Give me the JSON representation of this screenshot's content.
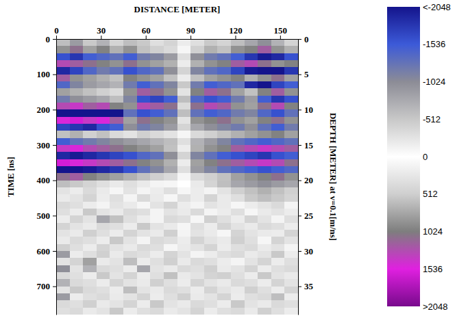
{
  "chart_data": {
    "type": "heatmap",
    "x_label": "DISTANCE [METER]",
    "y_label": "TIME [ns]",
    "y2_label": "DEPTH [METER] at v=0.1[m/ns]",
    "xlim": [
      0,
      162
    ],
    "xticks": [
      0,
      30,
      60,
      90,
      120,
      150
    ],
    "ylim": [
      0,
      780
    ],
    "yticks": [
      0,
      100,
      200,
      300,
      400,
      500,
      600,
      700
    ],
    "y2lim": [
      0,
      39
    ],
    "y2ticks": [
      0,
      5,
      10,
      15,
      20,
      25,
      30,
      35
    ],
    "x_bins": [
      0,
      9,
      18,
      27,
      36,
      45,
      54,
      63,
      72,
      81,
      90,
      99,
      108,
      117,
      126,
      135,
      144,
      153,
      162
    ],
    "y_bins": [
      0,
      20,
      40,
      60,
      80,
      100,
      120,
      140,
      160,
      180,
      200,
      220,
      240,
      260,
      280,
      300,
      320,
      340,
      360,
      380,
      400,
      420,
      440,
      460,
      480,
      500,
      520,
      540,
      560,
      580,
      600,
      620,
      640,
      660,
      680,
      700,
      720,
      740,
      760,
      780
    ],
    "values": [
      [
        -600,
        -900,
        -500,
        -700,
        -400,
        -600,
        -500,
        -300,
        -400,
        200,
        -300,
        -500,
        -400,
        -600,
        -800,
        -1000,
        -700,
        -400
      ],
      [
        900,
        1100,
        800,
        1000,
        700,
        900,
        600,
        500,
        400,
        100,
        500,
        700,
        600,
        900,
        1000,
        1200,
        900,
        700
      ],
      [
        -1600,
        -1800,
        -1500,
        -1400,
        -1300,
        -1500,
        -1200,
        -1100,
        -900,
        -300,
        -1000,
        -1200,
        -1300,
        -1500,
        -1800,
        -2000,
        -1900,
        -1600
      ],
      [
        1300,
        1200,
        1100,
        1000,
        900,
        1100,
        900,
        800,
        700,
        200,
        700,
        900,
        1000,
        1200,
        1300,
        1100,
        900,
        1000
      ],
      [
        -1900,
        -1700,
        -1400,
        -1200,
        -1300,
        -1600,
        -1400,
        -1300,
        -1000,
        -400,
        -1100,
        -1300,
        -1400,
        -1700,
        -2000,
        -2048,
        -2048,
        -1800
      ],
      [
        1200,
        900,
        800,
        700,
        600,
        1000,
        900,
        800,
        600,
        200,
        600,
        800,
        900,
        1000,
        700,
        900,
        1100,
        800
      ],
      [
        -1400,
        -1100,
        -900,
        -800,
        -700,
        -1200,
        -1500,
        -1300,
        -1100,
        -500,
        -1200,
        -1500,
        -1400,
        -1300,
        -1900,
        -2048,
        -1700,
        -1500
      ],
      [
        800,
        700,
        600,
        500,
        400,
        900,
        1200,
        1100,
        900,
        300,
        1000,
        1200,
        1100,
        800,
        600,
        1000,
        1200,
        900
      ],
      [
        -1200,
        -1000,
        -900,
        -800,
        -600,
        -1100,
        -1600,
        -1700,
        -1500,
        -600,
        -1400,
        -1600,
        -1500,
        -1200,
        -900,
        -1500,
        -1800,
        -1600
      ],
      [
        1300,
        1400,
        1200,
        1300,
        1000,
        900,
        1300,
        1200,
        1100,
        400,
        1100,
        1300,
        1200,
        900,
        800,
        1100,
        1300,
        1000
      ],
      [
        -2048,
        -2048,
        -2048,
        -2048,
        -2048,
        -1300,
        -1600,
        -1500,
        -1300,
        -600,
        -1300,
        -1500,
        -1400,
        -1200,
        -1100,
        -1400,
        -1600,
        -1300
      ],
      [
        1500,
        1600,
        1400,
        1500,
        1200,
        800,
        1100,
        1000,
        900,
        300,
        900,
        1000,
        1100,
        900,
        800,
        1000,
        1100,
        900
      ],
      [
        -1700,
        -1800,
        -1900,
        -1600,
        -1500,
        -1000,
        -1200,
        -1100,
        -900,
        -400,
        -800,
        -1000,
        -1100,
        -1200,
        -1000,
        -1300,
        -1500,
        -1200
      ],
      [
        600,
        700,
        500,
        600,
        400,
        300,
        500,
        400,
        300,
        100,
        400,
        500,
        600,
        700,
        800,
        900,
        1000,
        800
      ],
      [
        -1500,
        -1300,
        -1200,
        -1100,
        -1000,
        -900,
        -800,
        -700,
        -600,
        -300,
        -700,
        -900,
        -1100,
        -1300,
        -1400,
        -1500,
        -1400,
        -1300
      ],
      [
        1400,
        1500,
        1300,
        1200,
        1100,
        1000,
        900,
        800,
        600,
        200,
        700,
        900,
        1000,
        1200,
        1300,
        1400,
        1300,
        1200
      ],
      [
        -1900,
        -2000,
        -1900,
        -1800,
        -1700,
        -1600,
        -1400,
        -1300,
        -1000,
        -400,
        -1100,
        -1300,
        -1500,
        -1600,
        -1700,
        -1800,
        -1600,
        -1500
      ],
      [
        1600,
        1500,
        1400,
        1300,
        1200,
        1100,
        1000,
        900,
        700,
        200,
        800,
        1000,
        1100,
        1200,
        1300,
        1400,
        1300,
        1100
      ],
      [
        -2048,
        -2048,
        -2000,
        -1900,
        -1800,
        -1600,
        -1300,
        -1100,
        -800,
        -300,
        -900,
        -1100,
        -1300,
        -1400,
        -1500,
        -1600,
        -1500,
        -1400
      ],
      [
        1100,
        1200,
        1000,
        900,
        800,
        700,
        600,
        500,
        400,
        100,
        400,
        500,
        600,
        800,
        900,
        1000,
        1100,
        900
      ],
      [
        -600,
        -500,
        -400,
        -300,
        -200,
        -300,
        -200,
        -100,
        100,
        0,
        -200,
        -400,
        -600,
        -800,
        -900,
        -1000,
        -900,
        -800
      ],
      [
        300,
        200,
        400,
        -200,
        100,
        300,
        -100,
        200,
        -300,
        100,
        200,
        -100,
        300,
        500,
        600,
        700,
        600,
        500
      ],
      [
        -200,
        300,
        -400,
        200,
        -300,
        -100,
        400,
        -200,
        100,
        -300,
        200,
        -400,
        -200,
        -300,
        -500,
        -600,
        -500,
        -400
      ],
      [
        400,
        -300,
        200,
        -100,
        300,
        -200,
        100,
        300,
        -400,
        200,
        -100,
        300,
        -200,
        100,
        200,
        300,
        400,
        -100
      ],
      [
        -300,
        200,
        -500,
        300,
        -200,
        400,
        -300,
        -100,
        300,
        -200,
        400,
        -100,
        200,
        -300,
        100,
        -200,
        300,
        200
      ],
      [
        200,
        -400,
        300,
        -800,
        600,
        -300,
        200,
        -100,
        400,
        -300,
        100,
        500,
        -300,
        200,
        -400,
        300,
        -100,
        -300
      ],
      [
        -400,
        300,
        -200,
        400,
        -300,
        200,
        -500,
        300,
        -200,
        100,
        -300,
        200,
        -400,
        300,
        -200,
        400,
        -300,
        200
      ],
      [
        300,
        -200,
        500,
        -300,
        200,
        -400,
        300,
        -200,
        500,
        -100,
        300,
        -200,
        100,
        -400,
        300,
        -200,
        200,
        -400
      ],
      [
        -200,
        400,
        -300,
        200,
        -500,
        300,
        -100,
        400,
        -300,
        200,
        -400,
        300,
        -200,
        500,
        -300,
        100,
        -400,
        300
      ],
      [
        500,
        -300,
        200,
        -400,
        300,
        -200,
        400,
        -300,
        100,
        -200,
        300,
        -400,
        200,
        -300,
        400,
        -200,
        300,
        -100
      ],
      [
        -900,
        200,
        -300,
        500,
        -200,
        400,
        -300,
        200,
        -400,
        300,
        -100,
        200,
        -300,
        400,
        -200,
        300,
        -500,
        200
      ],
      [
        300,
        -400,
        800,
        -200,
        300,
        -600,
        200,
        -300,
        500,
        -200,
        400,
        -300,
        200,
        -100,
        300,
        -400,
        200,
        -300
      ],
      [
        -1000,
        300,
        -700,
        400,
        -300,
        200,
        -800,
        300,
        -200,
        400,
        -300,
        500,
        -200,
        300,
        -400,
        200,
        -300,
        400
      ],
      [
        400,
        -300,
        200,
        -500,
        300,
        -400,
        200,
        -300,
        600,
        -200,
        300,
        -400,
        500,
        -300,
        200,
        -500,
        300,
        -200
      ],
      [
        -700,
        400,
        -300,
        200,
        -400,
        300,
        -200,
        500,
        -300,
        200,
        -400,
        300,
        -200,
        400,
        -300,
        200,
        -400,
        300
      ],
      [
        300,
        -500,
        400,
        -300,
        200,
        -600,
        300,
        -200,
        400,
        -300,
        200,
        -400,
        300,
        -200,
        500,
        -300,
        200,
        -400
      ],
      [
        -900,
        200,
        -300,
        400,
        -200,
        300,
        -400,
        200,
        -300,
        500,
        -200,
        300,
        -400,
        200,
        -300,
        400,
        -600,
        200
      ],
      [
        400,
        -300,
        500,
        -200,
        300,
        -400,
        200,
        -500,
        300,
        -200,
        400,
        -300,
        200,
        -500,
        300,
        -200,
        400,
        -300
      ],
      [
        -300,
        400,
        -200,
        300,
        -500,
        200,
        -300,
        400,
        -200,
        300,
        -400,
        200,
        -300,
        400,
        -200,
        500,
        -300,
        200
      ]
    ],
    "colorbar": {
      "range": [
        -2048,
        2048
      ],
      "ticks": [
        {
          "value": -2048,
          "label": "<-2048"
        },
        -1536,
        -1024,
        -512,
        0,
        512,
        1024,
        1536,
        {
          "value": 2048,
          "label": ">2048"
        }
      ],
      "colors": [
        "#14148c",
        "#3c5ad8",
        "#8c8c96",
        "#c8c8c8",
        "#ffffff",
        "#cfcfcf",
        "#7e7e7e",
        "#e020e0",
        "#780a8c"
      ]
    }
  }
}
